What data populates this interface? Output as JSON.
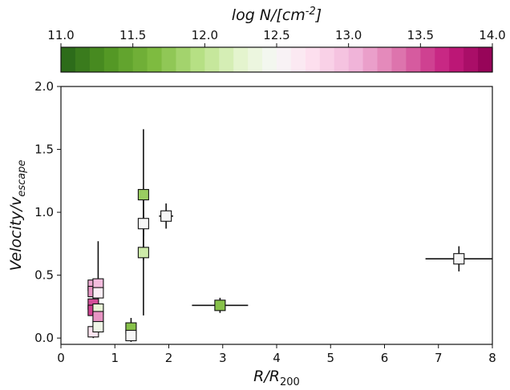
{
  "chart_data": {
    "type": "scatter",
    "title": "",
    "xlabel": "R/R200",
    "ylabel": "Velocity/v_escape",
    "xlim": [
      0,
      8
    ],
    "ylim": [
      -0.05,
      2.0
    ],
    "x_ticks": [
      "0",
      "1",
      "2",
      "3",
      "4",
      "5",
      "6",
      "7",
      "8"
    ],
    "y_ticks": [
      "0.0",
      "0.5",
      "1.0",
      "1.5",
      "2.0"
    ],
    "colorbar": {
      "label": "log N/[cm^-2]",
      "range": [
        11.0,
        14.0
      ],
      "ticks": [
        "11.0",
        "11.5",
        "12.0",
        "12.5",
        "13.0",
        "13.5",
        "14.0"
      ],
      "colormap": "PiYG (reversed, discrete)",
      "position": "top"
    },
    "points": [
      {
        "x": 0.6,
        "y": 0.42,
        "logN": 13.1,
        "xerr": 0.07,
        "yerr": 0.05
      },
      {
        "x": 0.6,
        "y": 0.37,
        "logN": 13.2,
        "xerr": 0.07,
        "yerr": 0.05
      },
      {
        "x": 0.6,
        "y": 0.27,
        "logN": 13.5,
        "xerr": 0.07,
        "yerr": 0.05
      },
      {
        "x": 0.6,
        "y": 0.22,
        "logN": 13.55,
        "xerr": 0.07,
        "yerr": 0.05
      },
      {
        "x": 0.6,
        "y": 0.05,
        "logN": 12.7,
        "xerr": 0.07,
        "yerr": 0.05
      },
      {
        "x": 0.69,
        "y": 0.43,
        "logN": 13.0,
        "xerr": 0.07,
        "yerr": 0.34
      },
      {
        "x": 0.69,
        "y": 0.36,
        "logN": 12.6,
        "xerr": 0.07,
        "yerr": 0.05
      },
      {
        "x": 0.69,
        "y": 0.23,
        "logN": 12.3,
        "xerr": 0.07,
        "yerr": 0.05
      },
      {
        "x": 0.69,
        "y": 0.17,
        "logN": 13.2,
        "xerr": 0.07,
        "yerr": 0.05
      },
      {
        "x": 0.69,
        "y": 0.09,
        "logN": 12.4,
        "xerr": 0.07,
        "yerr": 0.05
      },
      {
        "x": 1.3,
        "y": 0.08,
        "logN": 11.7,
        "xerr": 0.09,
        "yerr": 0.08
      },
      {
        "x": 1.3,
        "y": 0.02,
        "logN": 12.5,
        "xerr": 0.09,
        "yerr": 0.05
      },
      {
        "x": 1.53,
        "y": 1.14,
        "logN": 11.8,
        "xerr": 0.05,
        "yerr": 0.52
      },
      {
        "x": 1.53,
        "y": 0.91,
        "logN": 12.5,
        "xerr": 0.05,
        "yerr": 0.1
      },
      {
        "x": 1.53,
        "y": 0.68,
        "logN": 12.1,
        "xerr": 0.05,
        "yerr": 0.5
      },
      {
        "x": 1.95,
        "y": 0.97,
        "logN": 12.5,
        "xerr": 0.13,
        "yerr": 0.1
      },
      {
        "x": 2.95,
        "y": 0.26,
        "logN": 11.7,
        "xerr": 0.52,
        "yerr": 0.06
      },
      {
        "x": 7.38,
        "y": 0.63,
        "logN": 12.5,
        "xerr": 0.62,
        "yerr": 0.1
      }
    ]
  }
}
